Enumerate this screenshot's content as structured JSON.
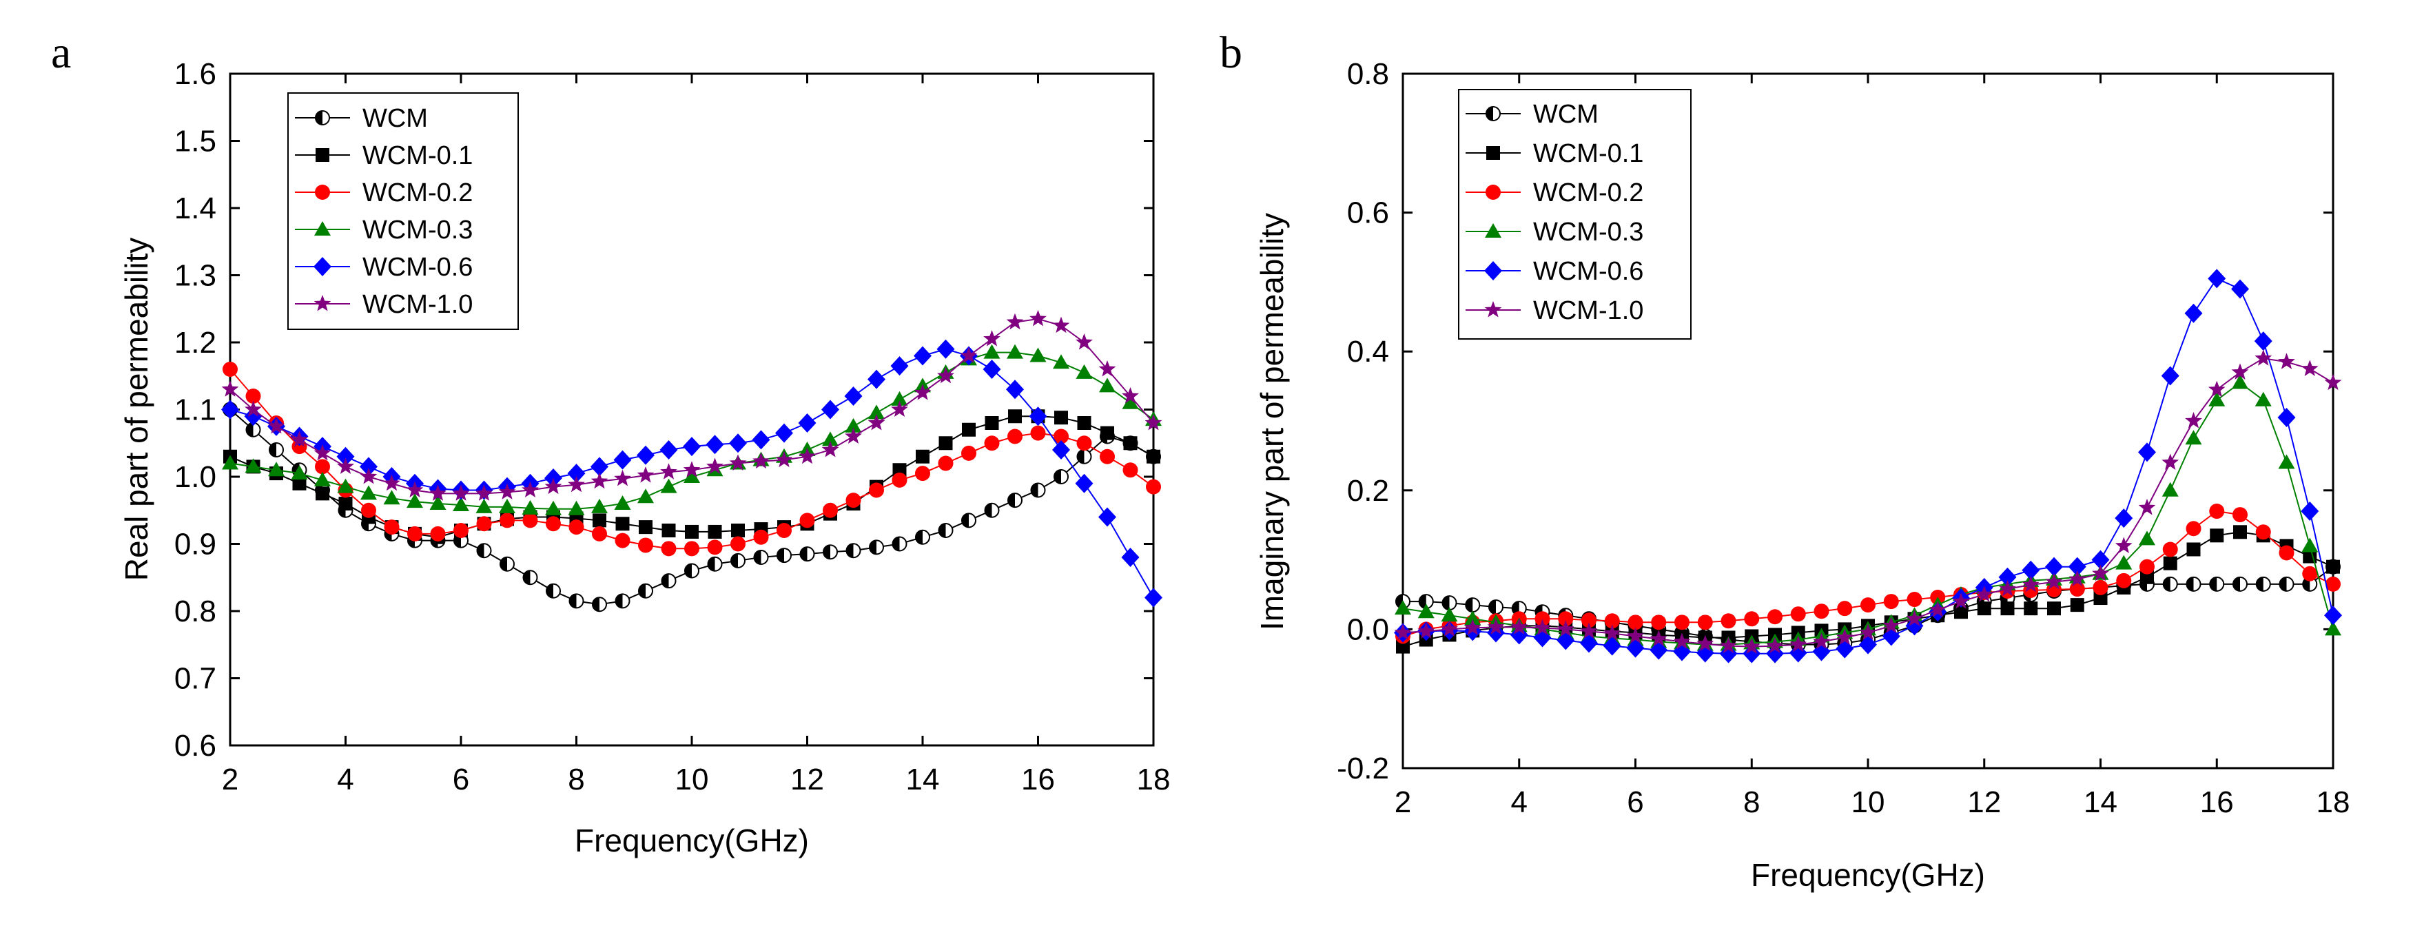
{
  "chart_data": [
    {
      "panel_label": "a",
      "type": "line",
      "title": "",
      "xlabel": "Frequency(GHz)",
      "ylabel": "Real part of permeability",
      "xlim": [
        2,
        18
      ],
      "ylim": [
        0.6,
        1.6
      ],
      "xticks": [
        "2",
        "4",
        "6",
        "8",
        "10",
        "12",
        "14",
        "16",
        "18"
      ],
      "yticks": [
        "0.6",
        "0.7",
        "0.8",
        "0.9",
        "1.0",
        "1.1",
        "1.2",
        "1.3",
        "1.4",
        "1.5",
        "1.6"
      ],
      "legend_position": "top-left",
      "x": [
        2.0,
        2.4,
        2.8,
        3.2,
        3.6,
        4.0,
        4.4,
        4.8,
        5.2,
        5.6,
        6.0,
        6.4,
        6.8,
        7.2,
        7.6,
        8.0,
        8.4,
        8.8,
        9.2,
        9.6,
        10.0,
        10.4,
        10.8,
        11.2,
        11.6,
        12.0,
        12.4,
        12.8,
        13.2,
        13.6,
        14.0,
        14.4,
        14.8,
        15.2,
        15.6,
        16.0,
        16.4,
        16.8,
        17.2,
        17.6,
        18.0
      ],
      "series": [
        {
          "name": "WCM",
          "marker": "half-circle",
          "color": "#000000",
          "values": [
            1.1,
            1.07,
            1.04,
            1.01,
            0.98,
            0.95,
            0.93,
            0.915,
            0.905,
            0.905,
            0.905,
            0.89,
            0.87,
            0.85,
            0.83,
            0.815,
            0.81,
            0.815,
            0.83,
            0.845,
            0.86,
            0.87,
            0.875,
            0.88,
            0.883,
            0.885,
            0.888,
            0.89,
            0.895,
            0.9,
            0.91,
            0.92,
            0.935,
            0.95,
            0.965,
            0.98,
            1.0,
            1.03,
            1.06,
            1.05,
            1.03
          ]
        },
        {
          "name": "WCM-0.1",
          "marker": "square",
          "color": "#000000",
          "values": [
            1.03,
            1.015,
            1.005,
            0.99,
            0.975,
            0.96,
            0.94,
            0.925,
            0.915,
            0.91,
            0.92,
            0.93,
            0.937,
            0.94,
            0.94,
            0.938,
            0.935,
            0.93,
            0.925,
            0.92,
            0.918,
            0.918,
            0.92,
            0.922,
            0.925,
            0.93,
            0.945,
            0.96,
            0.985,
            1.01,
            1.03,
            1.05,
            1.07,
            1.08,
            1.09,
            1.09,
            1.088,
            1.08,
            1.065,
            1.05,
            1.03
          ]
        },
        {
          "name": "WCM-0.2",
          "marker": "circle",
          "color": "#ff0000",
          "values": [
            1.16,
            1.12,
            1.08,
            1.045,
            1.015,
            0.98,
            0.95,
            0.925,
            0.915,
            0.915,
            0.92,
            0.93,
            0.935,
            0.935,
            0.93,
            0.925,
            0.915,
            0.905,
            0.898,
            0.893,
            0.893,
            0.895,
            0.9,
            0.91,
            0.92,
            0.935,
            0.95,
            0.965,
            0.98,
            0.995,
            1.005,
            1.02,
            1.035,
            1.05,
            1.06,
            1.065,
            1.06,
            1.05,
            1.03,
            1.01,
            0.985
          ]
        },
        {
          "name": "WCM-0.3",
          "marker": "triangle",
          "color": "#008000",
          "values": [
            1.02,
            1.015,
            1.01,
            1.005,
            0.995,
            0.985,
            0.975,
            0.968,
            0.963,
            0.96,
            0.958,
            0.955,
            0.955,
            0.953,
            0.952,
            0.952,
            0.955,
            0.96,
            0.97,
            0.985,
            1.0,
            1.01,
            1.02,
            1.025,
            1.03,
            1.04,
            1.055,
            1.075,
            1.095,
            1.115,
            1.135,
            1.155,
            1.175,
            1.185,
            1.185,
            1.18,
            1.17,
            1.155,
            1.135,
            1.11,
            1.085
          ]
        },
        {
          "name": "WCM-0.6",
          "marker": "diamond",
          "color": "#0000ff",
          "values": [
            1.1,
            1.09,
            1.075,
            1.06,
            1.045,
            1.03,
            1.015,
            1.0,
            0.99,
            0.982,
            0.98,
            0.98,
            0.985,
            0.99,
            0.998,
            1.005,
            1.015,
            1.025,
            1.032,
            1.04,
            1.045,
            1.048,
            1.05,
            1.055,
            1.065,
            1.08,
            1.1,
            1.12,
            1.145,
            1.165,
            1.18,
            1.19,
            1.18,
            1.16,
            1.13,
            1.09,
            1.04,
            0.99,
            0.94,
            0.88,
            0.82
          ]
        },
        {
          "name": "WCM-1.0",
          "marker": "star",
          "color": "#800080",
          "values": [
            1.13,
            1.1,
            1.075,
            1.055,
            1.035,
            1.015,
            1.0,
            0.99,
            0.98,
            0.975,
            0.975,
            0.975,
            0.977,
            0.98,
            0.985,
            0.988,
            0.993,
            0.997,
            1.002,
            1.007,
            1.01,
            1.015,
            1.02,
            1.023,
            1.025,
            1.03,
            1.04,
            1.06,
            1.08,
            1.1,
            1.125,
            1.15,
            1.18,
            1.205,
            1.23,
            1.235,
            1.225,
            1.2,
            1.16,
            1.12,
            1.08
          ]
        }
      ]
    },
    {
      "panel_label": "b",
      "type": "line",
      "title": "",
      "xlabel": "Frequency(GHz)",
      "ylabel": "Imaginary part of permeability",
      "xlim": [
        2,
        18
      ],
      "ylim": [
        -0.2,
        0.8
      ],
      "xticks": [
        "2",
        "4",
        "6",
        "8",
        "10",
        "12",
        "14",
        "16",
        "18"
      ],
      "yticks": [
        "-0.2",
        "0.0",
        "0.2",
        "0.4",
        "0.6",
        "0.8"
      ],
      "legend_position": "top-left",
      "x": [
        2.0,
        2.4,
        2.8,
        3.2,
        3.6,
        4.0,
        4.4,
        4.8,
        5.2,
        5.6,
        6.0,
        6.4,
        6.8,
        7.2,
        7.6,
        8.0,
        8.4,
        8.8,
        9.2,
        9.6,
        10.0,
        10.4,
        10.8,
        11.2,
        11.6,
        12.0,
        12.4,
        12.8,
        13.2,
        13.6,
        14.0,
        14.4,
        14.8,
        15.2,
        15.6,
        16.0,
        16.4,
        16.8,
        17.2,
        17.6,
        18.0
      ],
      "series": [
        {
          "name": "WCM",
          "marker": "half-circle",
          "color": "#000000",
          "values": [
            0.04,
            0.04,
            0.038,
            0.035,
            0.032,
            0.03,
            0.025,
            0.02,
            0.015,
            0.01,
            0.005,
            0.0,
            -0.005,
            -0.01,
            -0.015,
            -0.018,
            -0.02,
            -0.022,
            -0.022,
            -0.02,
            -0.015,
            -0.005,
            0.005,
            0.02,
            0.03,
            0.04,
            0.045,
            0.05,
            0.055,
            0.058,
            0.06,
            0.063,
            0.065,
            0.065,
            0.065,
            0.065,
            0.065,
            0.065,
            0.065,
            0.065,
            0.09
          ]
        },
        {
          "name": "WCM-0.1",
          "marker": "square",
          "color": "#000000",
          "values": [
            -0.025,
            -0.015,
            -0.008,
            -0.002,
            0.002,
            0.005,
            0.005,
            0.003,
            0.0,
            -0.003,
            -0.005,
            -0.008,
            -0.01,
            -0.012,
            -0.012,
            -0.01,
            -0.008,
            -0.005,
            -0.002,
            0.0,
            0.005,
            0.01,
            0.015,
            0.02,
            0.025,
            0.03,
            0.03,
            0.03,
            0.03,
            0.035,
            0.045,
            0.06,
            0.075,
            0.095,
            0.115,
            0.135,
            0.14,
            0.135,
            0.12,
            0.105,
            0.09
          ]
        },
        {
          "name": "WCM-0.2",
          "marker": "circle",
          "color": "#ff0000",
          "values": [
            -0.01,
            0.0,
            0.005,
            0.01,
            0.012,
            0.015,
            0.015,
            0.015,
            0.013,
            0.012,
            0.01,
            0.01,
            0.01,
            0.01,
            0.012,
            0.015,
            0.018,
            0.022,
            0.026,
            0.03,
            0.035,
            0.04,
            0.043,
            0.046,
            0.05,
            0.053,
            0.055,
            0.056,
            0.057,
            0.058,
            0.06,
            0.07,
            0.09,
            0.115,
            0.145,
            0.17,
            0.165,
            0.14,
            0.11,
            0.08,
            0.065
          ]
        },
        {
          "name": "WCM-0.3",
          "marker": "triangle",
          "color": "#008000",
          "values": [
            0.03,
            0.025,
            0.02,
            0.015,
            0.01,
            0.005,
            0.0,
            -0.005,
            -0.01,
            -0.013,
            -0.015,
            -0.018,
            -0.02,
            -0.022,
            -0.022,
            -0.02,
            -0.018,
            -0.015,
            -0.01,
            -0.005,
            0.0,
            0.01,
            0.02,
            0.035,
            0.05,
            0.06,
            0.065,
            0.07,
            0.072,
            0.075,
            0.08,
            0.095,
            0.13,
            0.2,
            0.275,
            0.33,
            0.355,
            0.33,
            0.24,
            0.12,
            0.0
          ]
        },
        {
          "name": "WCM-0.6",
          "marker": "diamond",
          "color": "#0000ff",
          "values": [
            -0.005,
            -0.003,
            -0.002,
            -0.003,
            -0.005,
            -0.008,
            -0.012,
            -0.016,
            -0.02,
            -0.024,
            -0.027,
            -0.03,
            -0.032,
            -0.034,
            -0.035,
            -0.035,
            -0.035,
            -0.034,
            -0.032,
            -0.028,
            -0.022,
            -0.01,
            0.005,
            0.025,
            0.045,
            0.06,
            0.075,
            0.085,
            0.09,
            0.09,
            0.1,
            0.16,
            0.255,
            0.365,
            0.455,
            0.505,
            0.49,
            0.415,
            0.305,
            0.17,
            0.02
          ]
        },
        {
          "name": "WCM-1.0",
          "marker": "star",
          "color": "#800080",
          "values": [
            -0.005,
            -0.003,
            0.0,
            0.002,
            0.003,
            0.003,
            0.002,
            0.0,
            -0.003,
            -0.006,
            -0.01,
            -0.014,
            -0.018,
            -0.021,
            -0.024,
            -0.025,
            -0.024,
            -0.022,
            -0.018,
            -0.012,
            -0.005,
            0.005,
            0.015,
            0.028,
            0.04,
            0.05,
            0.058,
            0.064,
            0.068,
            0.072,
            0.08,
            0.12,
            0.175,
            0.24,
            0.3,
            0.345,
            0.37,
            0.39,
            0.385,
            0.375,
            0.355
          ]
        }
      ]
    }
  ]
}
